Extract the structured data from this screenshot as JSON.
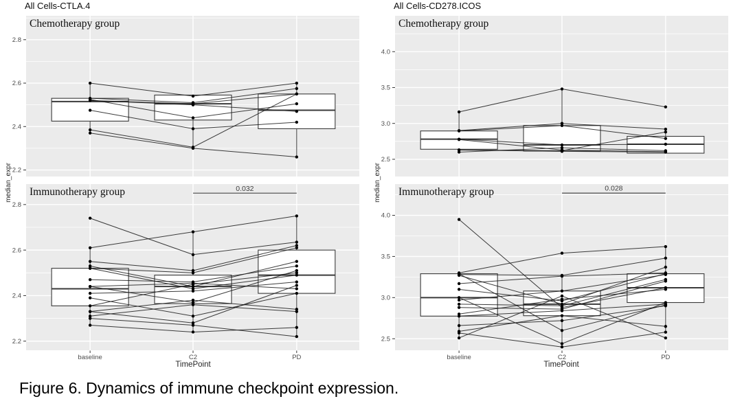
{
  "caption": "Figure 6. Dynamics of immune checkpoint expression.",
  "style": {
    "panel_bg": "#ebebeb",
    "grid": "#ffffff",
    "box_border": "#3a3a3a",
    "box_fill": "#ffffff",
    "line": "#1a1a1a",
    "point": "#000000",
    "tick_label": "#4d4d4d",
    "axis_text": "#262626",
    "annotation_line": "#595959",
    "annotation_text": "#404040"
  },
  "chart_data": [
    {
      "type": "boxplot-paired-lines",
      "title": "All Cells-CTLA.4",
      "xlabel": "TimePoint",
      "ylabel": "median_expr",
      "categories": [
        "baseline",
        "C2",
        "PD"
      ],
      "facets": [
        {
          "label": "Chemotherapy group",
          "ylim": [
            2.17,
            2.91
          ],
          "yticks": [
            2.2,
            2.4,
            2.6,
            2.8
          ],
          "boxes": [
            {
              "category": "baseline",
              "whisker_low": 2.37,
              "q1": 2.425,
              "median": 2.515,
              "q3": 2.53,
              "whisker_high": 2.6
            },
            {
              "category": "C2",
              "whisker_low": 2.3,
              "q1": 2.43,
              "median": 2.505,
              "q3": 2.545,
              "whisker_high": 2.545
            },
            {
              "category": "PD",
              "whisker_low": 2.26,
              "q1": 2.39,
              "median": 2.475,
              "q3": 2.55,
              "whisker_high": 2.6
            }
          ],
          "subject_lines": [
            [
              2.6,
              2.54,
              2.6
            ],
            [
              2.53,
              2.51,
              2.575
            ],
            [
              2.52,
              2.505,
              2.55
            ],
            [
              2.525,
              2.44,
              2.505
            ],
            [
              2.475,
              2.39,
              2.42
            ],
            [
              2.52,
              2.5,
              2.47
            ],
            [
              2.385,
              2.305,
              2.55
            ],
            [
              2.37,
              2.3,
              2.26
            ]
          ]
        },
        {
          "label": "Immunotherapy group",
          "ylim": [
            2.16,
            2.89
          ],
          "yticks": [
            2.2,
            2.4,
            2.6,
            2.8
          ],
          "annotation": {
            "text": "0.032",
            "from": "C2",
            "to": "PD",
            "y": 2.85
          },
          "boxes": [
            {
              "category": "baseline",
              "whisker_low": 2.27,
              "q1": 2.355,
              "median": 2.43,
              "q3": 2.52,
              "whisker_high": 2.61
            },
            {
              "category": "C2",
              "whisker_low": 2.24,
              "q1": 2.365,
              "median": 2.44,
              "q3": 2.49,
              "whisker_high": 2.68
            },
            {
              "category": "PD",
              "whisker_low": 2.22,
              "q1": 2.41,
              "median": 2.49,
              "q3": 2.6,
              "whisker_high": 2.755
            }
          ],
          "subject_lines": [
            [
              2.74,
              2.58,
              2.635
            ],
            [
              2.61,
              2.68,
              2.75
            ],
            [
              2.55,
              2.51,
              2.62
            ],
            [
              2.53,
              2.44,
              2.55
            ],
            [
              2.52,
              2.5,
              2.61
            ],
            [
              2.52,
              2.43,
              2.49
            ],
            [
              2.47,
              2.46,
              2.53
            ],
            [
              2.44,
              2.37,
              2.51
            ],
            [
              2.44,
              2.455,
              2.43
            ],
            [
              2.41,
              2.42,
              2.46
            ],
            [
              2.39,
              2.31,
              2.41
            ],
            [
              2.355,
              2.45,
              2.5
            ],
            [
              2.33,
              2.38,
              2.34
            ],
            [
              2.33,
              2.28,
              2.445
            ],
            [
              2.31,
              2.36,
              2.33
            ],
            [
              2.3,
              2.27,
              2.22
            ],
            [
              2.27,
              2.24,
              2.26
            ]
          ]
        }
      ]
    },
    {
      "type": "boxplot-paired-lines",
      "title": "All Cells-CD278.ICOS",
      "xlabel": "TimePoint",
      "ylabel": "median_expr",
      "categories": [
        "baseline",
        "C2",
        "PD"
      ],
      "facets": [
        {
          "label": "Chemotherapy group",
          "ylim": [
            2.26,
            4.5
          ],
          "yticks": [
            2.5,
            3.0,
            3.5,
            4.0
          ],
          "boxes": [
            {
              "category": "baseline",
              "whisker_low": 2.6,
              "q1": 2.64,
              "median": 2.78,
              "q3": 2.895,
              "whisker_high": 3.16
            },
            {
              "category": "C2",
              "whisker_low": 2.6,
              "q1": 2.615,
              "median": 2.7,
              "q3": 2.97,
              "whisker_high": 3.48
            },
            {
              "category": "PD",
              "whisker_low": 2.58,
              "q1": 2.585,
              "median": 2.71,
              "q3": 2.82,
              "whisker_high": 2.92
            }
          ],
          "subject_lines": [
            [
              3.16,
              3.48,
              3.23
            ],
            [
              2.9,
              3.0,
              2.92
            ],
            [
              2.895,
              2.97,
              2.79
            ],
            [
              2.78,
              2.7,
              2.71
            ],
            [
              2.775,
              2.63,
              2.605
            ],
            [
              2.63,
              2.62,
              2.88
            ],
            [
              2.63,
              2.61,
              2.6
            ],
            [
              2.6,
              2.66,
              2.62
            ]
          ]
        },
        {
          "label": "Immunotherapy group",
          "ylim": [
            2.36,
            4.38
          ],
          "yticks": [
            2.5,
            3.0,
            3.5,
            4.0
          ],
          "annotation": {
            "text": "0.028",
            "from": "C2",
            "to": "PD",
            "y": 4.27
          },
          "boxes": [
            {
              "category": "baseline",
              "whisker_low": 2.51,
              "q1": 2.775,
              "median": 3.0,
              "q3": 3.29,
              "whisker_high": 3.3
            },
            {
              "category": "C2",
              "whisker_low": 2.4,
              "q1": 2.78,
              "median": 2.92,
              "q3": 3.08,
              "whisker_high": 3.27
            },
            {
              "category": "PD",
              "whisker_low": 2.58,
              "q1": 2.94,
              "median": 3.12,
              "q3": 3.29,
              "whisker_high": 3.62
            }
          ],
          "subject_lines": [
            [
              3.95,
              2.88,
              3.12
            ],
            [
              3.3,
              3.54,
              3.62
            ],
            [
              3.29,
              2.6,
              2.91
            ],
            [
              3.28,
              3.27,
              3.48
            ],
            [
              3.27,
              2.92,
              3.37
            ],
            [
              3.17,
              3.26,
              3.3
            ],
            [
              3.1,
              2.96,
              3.29
            ],
            [
              3.0,
              2.44,
              2.94
            ],
            [
              2.97,
              3.08,
              3.28
            ],
            [
              2.92,
              2.9,
              3.22
            ],
            [
              2.88,
              2.86,
              3.2
            ],
            [
              2.8,
              2.98,
              3.1
            ],
            [
              2.775,
              2.84,
              2.92
            ],
            [
              2.66,
              2.72,
              2.9
            ],
            [
              2.59,
              2.78,
              2.65
            ],
            [
              2.57,
              2.4,
              2.58
            ],
            [
              2.51,
              3.02,
              2.51
            ]
          ]
        }
      ]
    }
  ]
}
